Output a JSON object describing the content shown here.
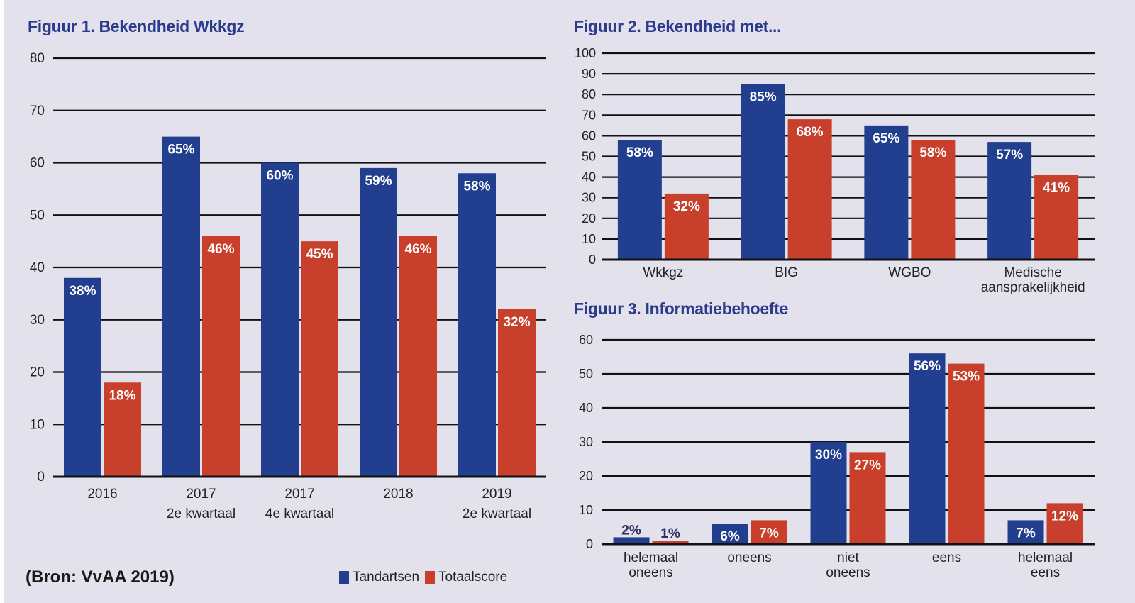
{
  "source": "(Bron: VvAA 2019)",
  "legend": {
    "series": [
      {
        "name": "Tandartsen",
        "color": "#223f8f"
      },
      {
        "name": "Totaalscore",
        "color": "#c8402c"
      }
    ]
  },
  "colors": {
    "background": "#e3e1ec",
    "title": "#2b3c8c",
    "blue": "#223f8f",
    "red": "#c8402c",
    "grid": "#111111"
  },
  "chart_data": [
    {
      "id": "fig1",
      "type": "bar",
      "title": "Figuur 1. Bekendheid Wkkgz",
      "categories": [
        [
          "2016"
        ],
        [
          "2017",
          "2e kwartaal"
        ],
        [
          "2017",
          "4e kwartaal"
        ],
        [
          "2018"
        ],
        [
          "2019",
          "2e kwartaal"
        ]
      ],
      "series": [
        {
          "name": "Tandartsen",
          "values": [
            38,
            65,
            60,
            59,
            58
          ],
          "labels": [
            "38%",
            "65%",
            "60%",
            "59%",
            "58%"
          ]
        },
        {
          "name": "Totaalscore",
          "values": [
            18,
            46,
            45,
            46,
            32
          ],
          "labels": [
            "18%",
            "46%",
            "45%",
            "46%",
            "32%"
          ]
        }
      ],
      "xlabel": "",
      "ylabel": "",
      "ylim": [
        0,
        80
      ],
      "yticks": [
        0,
        10,
        20,
        30,
        40,
        50,
        60,
        70,
        80
      ],
      "grid": true
    },
    {
      "id": "fig2",
      "type": "bar",
      "title": "Figuur 2. Bekendheid met...",
      "categories": [
        [
          "Wkkgz"
        ],
        [
          "BIG"
        ],
        [
          "WGBO"
        ],
        [
          "Medische",
          "aansprakelijkheid"
        ]
      ],
      "series": [
        {
          "name": "Tandartsen",
          "values": [
            58,
            85,
            65,
            57
          ],
          "labels": [
            "58%",
            "85%",
            "65%",
            "57%"
          ]
        },
        {
          "name": "Totaalscore",
          "values": [
            32,
            68,
            58,
            41
          ],
          "labels": [
            "32%",
            "68%",
            "58%",
            "41%"
          ]
        }
      ],
      "xlabel": "",
      "ylabel": "",
      "ylim": [
        0,
        100
      ],
      "yticks": [
        0,
        10,
        20,
        30,
        40,
        50,
        60,
        70,
        80,
        90,
        100
      ],
      "grid": true
    },
    {
      "id": "fig3",
      "type": "bar",
      "title": "Figuur 3. Informatiebehoefte",
      "categories": [
        [
          "helemaal",
          "oneens"
        ],
        [
          "oneens"
        ],
        [
          "niet",
          "oneens"
        ],
        [
          "eens"
        ],
        [
          "helemaal",
          "eens"
        ]
      ],
      "series": [
        {
          "name": "Tandartsen",
          "values": [
            2,
            6,
            30,
            56,
            7
          ],
          "labels": [
            "2%",
            "6%",
            "30%",
            "56%",
            "7%"
          ]
        },
        {
          "name": "Totaalscore",
          "values": [
            1,
            7,
            27,
            53,
            12
          ],
          "labels": [
            "1%",
            "7%",
            "27%",
            "53%",
            "12%"
          ]
        }
      ],
      "xlabel": "",
      "ylabel": "",
      "ylim": [
        0,
        60
      ],
      "yticks": [
        0,
        10,
        20,
        30,
        40,
        50,
        60
      ],
      "grid": true
    }
  ]
}
